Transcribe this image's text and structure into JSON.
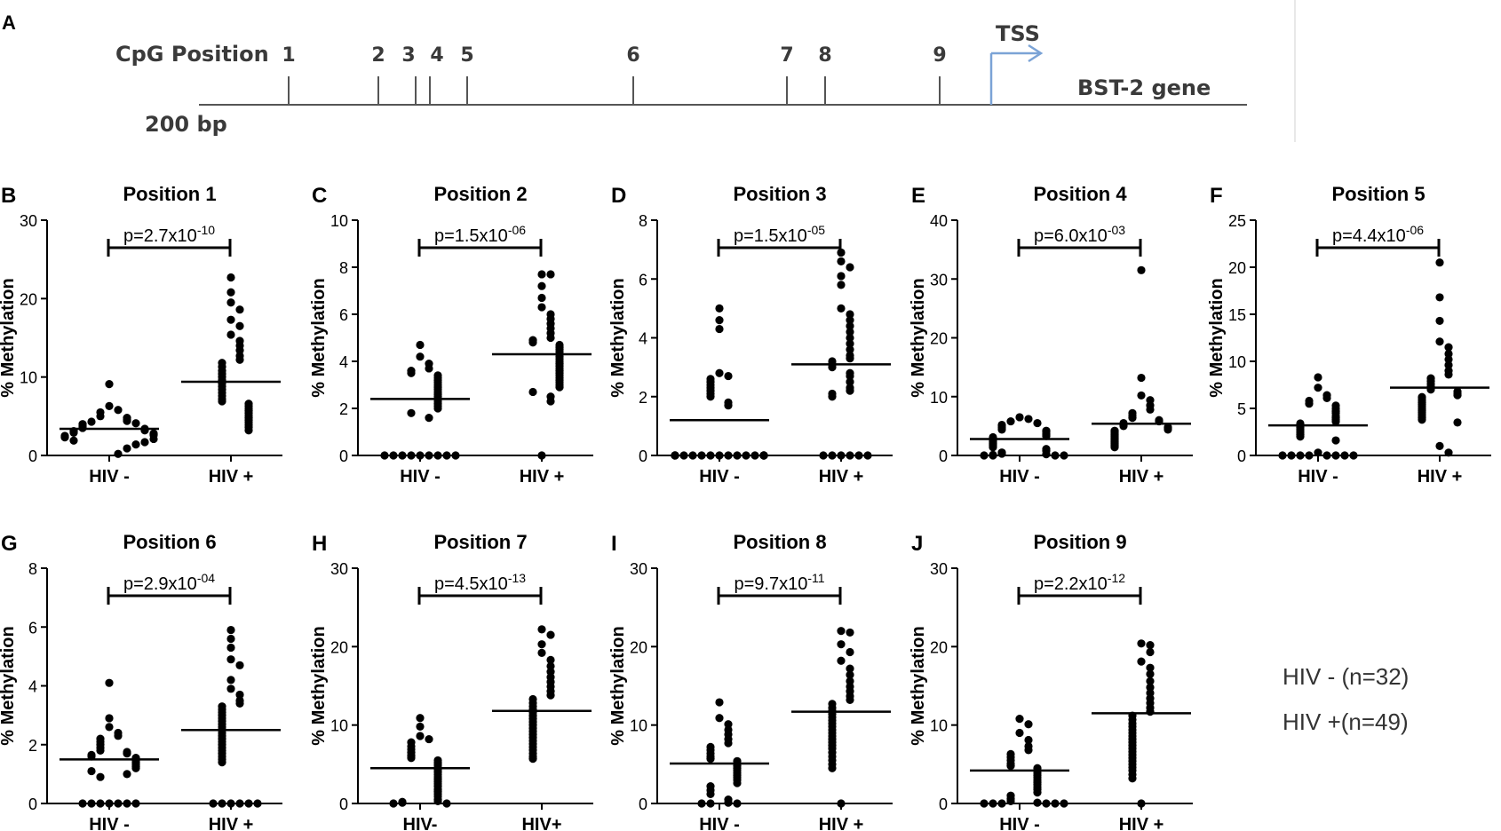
{
  "map": {
    "panel_letter": "A",
    "cpg_label": "CpG Position",
    "scale_label": "200 bp",
    "tss_label": "TSS",
    "gene_label": "BST-2 gene",
    "positions": [
      "1",
      "2",
      "3",
      "4",
      "5",
      "6",
      "7",
      "8",
      "9"
    ]
  },
  "legend": {
    "neg": "HIV - (n=32)",
    "pos": "HIV +(n=49)"
  },
  "colors": {
    "ink": "#000000",
    "map_line": "#555555",
    "tss_arrow": "#7ba3d6",
    "map_text": "#3a3a3a"
  },
  "chart_data": [
    {
      "letter": "B",
      "title": "Position 1",
      "type": "scatter",
      "ylabel": "% Methylation",
      "ylim": [
        0,
        30
      ],
      "yticks": [
        0,
        10,
        20,
        30
      ],
      "categories": [
        "HIV -",
        "HIV +"
      ],
      "p": "p=2.7x10",
      "exp": "-10",
      "means": [
        3.4,
        9.4
      ],
      "series": [
        {
          "name": "HIV -",
          "values": [
            9.1,
            6.3,
            5.8,
            5.5,
            5.0,
            4.8,
            4.6,
            4.4,
            4.3,
            4.1,
            4.0,
            3.8,
            3.7,
            3.5,
            3.4,
            3.3,
            3.2,
            3.1,
            3.0,
            2.9,
            2.8,
            2.7,
            2.6,
            2.5,
            2.4,
            2.3,
            2.1,
            1.9,
            1.7,
            1.4,
            0.9,
            0.2
          ]
        },
        {
          "name": "HIV +",
          "values": [
            22.7,
            20.8,
            19.5,
            18.6,
            17.3,
            16.5,
            15.4,
            14.6,
            14.0,
            13.4,
            12.7,
            12.2,
            11.8,
            11.3,
            10.8,
            10.4,
            10.0,
            9.6,
            9.2,
            8.8,
            8.4,
            8.0,
            7.6,
            7.2,
            6.9,
            6.6,
            6.3,
            6.0,
            5.7,
            5.4,
            5.1,
            4.8,
            4.5,
            4.2,
            3.9,
            3.6,
            3.2
          ]
        }
      ]
    },
    {
      "letter": "C",
      "title": "Position 2",
      "type": "scatter",
      "ylabel": "% Methylation",
      "ylim": [
        0,
        10
      ],
      "yticks": [
        0,
        2,
        4,
        6,
        8,
        10
      ],
      "categories": [
        "HIV -",
        "HIV +"
      ],
      "p": "p=1.5x10",
      "exp": "-06",
      "means": [
        2.4,
        4.3
      ],
      "series": [
        {
          "name": "HIV -",
          "values": [
            4.7,
            4.2,
            3.9,
            3.7,
            3.6,
            3.5,
            3.4,
            3.3,
            3.2,
            3.1,
            3.0,
            2.9,
            2.8,
            2.7,
            2.6,
            2.5,
            2.4,
            2.3,
            2.2,
            2.1,
            2.0,
            1.8,
            1.6,
            0,
            0,
            0,
            0,
            0,
            0,
            0,
            0,
            0
          ]
        },
        {
          "name": "HIV +",
          "values": [
            7.7,
            7.7,
            7.2,
            6.7,
            6.3,
            6.0,
            5.8,
            5.6,
            5.4,
            5.2,
            5.0,
            4.9,
            4.8,
            4.7,
            4.6,
            4.5,
            4.4,
            4.3,
            4.2,
            4.1,
            4.0,
            3.9,
            3.8,
            3.7,
            3.6,
            3.5,
            3.4,
            3.3,
            3.2,
            3.1,
            3.0,
            2.9,
            2.7,
            2.5,
            2.3,
            0
          ]
        }
      ]
    },
    {
      "letter": "D",
      "title": "Position 3",
      "type": "scatter",
      "ylabel": "% Methylation",
      "ylim": [
        0,
        8
      ],
      "yticks": [
        0,
        2,
        4,
        6,
        8
      ],
      "categories": [
        "HIV -",
        "HIV +"
      ],
      "p": "p=1.5x10",
      "exp": "-05",
      "means": [
        1.2,
        3.1
      ],
      "series": [
        {
          "name": "HIV -",
          "values": [
            5.0,
            4.6,
            4.3,
            2.8,
            2.7,
            2.6,
            2.5,
            2.4,
            2.3,
            2.2,
            2.1,
            2.0,
            1.8,
            1.7,
            0,
            0,
            0,
            0,
            0,
            0,
            0,
            0,
            0,
            0,
            0,
            0,
            0,
            0,
            0,
            0,
            0,
            0
          ]
        },
        {
          "name": "HIV +",
          "values": [
            6.9,
            6.6,
            6.4,
            6.1,
            5.8,
            5.0,
            4.8,
            4.6,
            4.4,
            4.2,
            4.0,
            3.8,
            3.6,
            3.4,
            3.3,
            3.2,
            3.1,
            3.0,
            2.8,
            2.7,
            2.5,
            2.3,
            2.2,
            2.1,
            2.0,
            0,
            0,
            0,
            0,
            0,
            0
          ]
        }
      ]
    },
    {
      "letter": "E",
      "title": "Position 4",
      "type": "scatter",
      "ylabel": "% Methylation",
      "ylim": [
        0,
        40
      ],
      "yticks": [
        0,
        10,
        20,
        30,
        40
      ],
      "categories": [
        "HIV -",
        "HIV +"
      ],
      "p": "p=6.0x10",
      "exp": "-03",
      "means": [
        2.8,
        5.4
      ],
      "series": [
        {
          "name": "HIV -",
          "values": [
            6.5,
            6.2,
            5.8,
            5.5,
            5.2,
            5.0,
            4.7,
            4.4,
            4.2,
            4.0,
            3.7,
            3.5,
            3.3,
            3.1,
            2.9,
            2.7,
            2.5,
            2.3,
            2.1,
            1.9,
            1.7,
            1.4,
            1.1,
            0.8,
            0.5,
            0.3,
            0.2,
            0.1,
            0,
            0,
            0,
            0
          ]
        },
        {
          "name": "HIV +",
          "values": [
            31.5,
            13.2,
            10.2,
            9.4,
            8.5,
            7.8,
            7.2,
            6.8,
            6.4,
            6.0,
            5.8,
            5.5,
            5.2,
            5.0,
            4.8,
            4.6,
            4.4,
            4.2,
            4.0,
            3.8,
            3.6,
            3.4,
            3.2,
            3.0,
            2.8,
            2.6,
            2.4,
            2.2,
            2.0,
            1.8,
            1.6,
            1.4
          ]
        }
      ]
    },
    {
      "letter": "F",
      "title": "Position 5",
      "type": "scatter",
      "ylabel": "% Methylation",
      "ylim": [
        0,
        25
      ],
      "yticks": [
        0,
        5,
        10,
        15,
        20,
        25
      ],
      "categories": [
        "HIV -",
        "HIV +"
      ],
      "p": "p=4.4x10",
      "exp": "-06",
      "means": [
        3.2,
        7.2
      ],
      "series": [
        {
          "name": "HIV -",
          "values": [
            8.3,
            7.2,
            6.4,
            6.1,
            5.8,
            5.5,
            5.3,
            5.0,
            4.7,
            4.5,
            4.2,
            4.0,
            3.8,
            3.6,
            3.4,
            3.2,
            3.0,
            2.8,
            2.6,
            2.4,
            2.2,
            2.0,
            1.6,
            0.3,
            0,
            0,
            0,
            0,
            0,
            0,
            0,
            0
          ]
        },
        {
          "name": "HIV +",
          "values": [
            20.5,
            16.8,
            14.3,
            12.1,
            11.5,
            10.8,
            10.2,
            9.6,
            9.0,
            8.6,
            8.2,
            7.9,
            7.6,
            7.3,
            7.0,
            6.8,
            6.6,
            6.4,
            6.2,
            6.0,
            5.8,
            5.6,
            5.4,
            5.2,
            5.0,
            4.8,
            4.6,
            4.4,
            4.2,
            4.0,
            3.8,
            3.5,
            1.0,
            0.3
          ]
        }
      ]
    },
    {
      "letter": "G",
      "title": "Position 6",
      "type": "scatter",
      "ylabel": "% Methylation",
      "ylim": [
        0,
        8
      ],
      "yticks": [
        0,
        2,
        4,
        6,
        8
      ],
      "categories": [
        "HIV -",
        "HIV +"
      ],
      "p": "p=2.9x10",
      "exp": "-04",
      "means": [
        1.5,
        2.5
      ],
      "series": [
        {
          "name": "HIV -",
          "values": [
            4.1,
            2.9,
            2.6,
            2.4,
            2.3,
            2.2,
            2.1,
            2.0,
            1.9,
            1.8,
            1.75,
            1.7,
            1.65,
            1.6,
            1.55,
            1.5,
            1.45,
            1.4,
            1.35,
            1.3,
            1.25,
            1.2,
            1.1,
            1.0,
            0.9,
            0,
            0,
            0,
            0,
            0,
            0,
            0
          ]
        },
        {
          "name": "HIV +",
          "values": [
            5.9,
            5.6,
            5.3,
            4.9,
            4.7,
            4.2,
            3.9,
            3.7,
            3.5,
            3.4,
            3.3,
            3.2,
            3.1,
            3.0,
            2.9,
            2.8,
            2.7,
            2.6,
            2.5,
            2.4,
            2.3,
            2.2,
            2.1,
            2.0,
            1.9,
            1.8,
            1.7,
            1.6,
            1.5,
            1.4,
            0,
            0,
            0,
            0,
            0,
            0
          ]
        }
      ]
    },
    {
      "letter": "H",
      "title": "Position 7",
      "type": "scatter",
      "ylabel": "% Methylation",
      "ylim": [
        0,
        30
      ],
      "yticks": [
        0,
        10,
        20,
        30
      ],
      "categories": [
        "HIV-",
        "HIV+"
      ],
      "p": "p=4.5x10",
      "exp": "-13",
      "means": [
        4.5,
        11.8
      ],
      "series": [
        {
          "name": "HIV-",
          "values": [
            10.9,
            9.8,
            8.6,
            8.2,
            7.8,
            7.3,
            6.9,
            6.5,
            6.1,
            5.8,
            5.5,
            5.2,
            4.9,
            4.6,
            4.3,
            4.0,
            3.7,
            3.4,
            3.1,
            2.8,
            2.5,
            2.2,
            1.8,
            1.5,
            1.2,
            0.9,
            0.5,
            0.3,
            0.2,
            0.1,
            0,
            0
          ]
        },
        {
          "name": "HIV+",
          "values": [
            22.2,
            21.5,
            20.3,
            19.2,
            18.3,
            17.5,
            16.8,
            16.1,
            15.5,
            14.9,
            14.3,
            13.8,
            13.3,
            12.8,
            12.4,
            12.0,
            11.6,
            11.2,
            10.8,
            10.4,
            10.0,
            9.6,
            9.2,
            8.8,
            8.4,
            8.0,
            7.6,
            7.2,
            6.8,
            6.4,
            6.0,
            5.7
          ]
        }
      ]
    },
    {
      "letter": "I",
      "title": "Position 8",
      "type": "scatter",
      "ylabel": "% Methylation",
      "ylim": [
        0,
        30
      ],
      "yticks": [
        0,
        10,
        20,
        30
      ],
      "categories": [
        "HIV -",
        "HIV +"
      ],
      "p": "p=9.7x10",
      "exp": "-11",
      "means": [
        5.1,
        11.7
      ],
      "series": [
        {
          "name": "HIV -",
          "values": [
            12.9,
            10.9,
            10.1,
            9.4,
            8.8,
            8.2,
            7.7,
            7.2,
            6.8,
            6.4,
            6.0,
            5.7,
            5.4,
            5.1,
            4.8,
            4.5,
            4.2,
            3.9,
            3.6,
            3.3,
            3.0,
            2.6,
            2.2,
            1.7,
            1.2,
            0.5,
            0.1,
            0,
            0,
            0
          ]
        },
        {
          "name": "HIV +",
          "values": [
            22.0,
            21.8,
            20.3,
            19.3,
            18.2,
            17.2,
            16.4,
            15.6,
            14.9,
            14.3,
            13.7,
            13.2,
            12.7,
            12.2,
            11.8,
            11.4,
            11.0,
            10.6,
            10.2,
            9.8,
            9.4,
            9.0,
            8.6,
            8.2,
            7.8,
            7.4,
            7.0,
            6.5,
            6.0,
            5.5,
            5.0,
            4.5,
            0
          ]
        }
      ]
    },
    {
      "letter": "J",
      "title": "Position 9",
      "type": "scatter",
      "ylabel": "% Methylation",
      "ylim": [
        0,
        30
      ],
      "yticks": [
        0,
        10,
        20,
        30
      ],
      "categories": [
        "HIV -",
        "HIV +"
      ],
      "p": "p=2.2x10",
      "exp": "-12",
      "means": [
        4.2,
        11.5
      ],
      "series": [
        {
          "name": "HIV -",
          "values": [
            10.8,
            10.1,
            9.0,
            8.1,
            7.3,
            6.8,
            6.3,
            5.9,
            5.5,
            5.1,
            4.8,
            4.5,
            4.2,
            3.9,
            3.6,
            3.3,
            3.0,
            2.7,
            2.4,
            2.1,
            1.8,
            1.4,
            1.0,
            0.6,
            0.3,
            0.1,
            0,
            0,
            0,
            0,
            0,
            0
          ]
        },
        {
          "name": "HIV +",
          "values": [
            20.4,
            20.2,
            19.3,
            18.1,
            17.3,
            16.5,
            15.6,
            14.8,
            14.1,
            13.4,
            12.8,
            12.2,
            11.7,
            11.2,
            10.7,
            10.2,
            9.8,
            9.4,
            9.0,
            8.6,
            8.2,
            7.8,
            7.4,
            7.0,
            6.6,
            6.2,
            5.8,
            5.4,
            5.0,
            4.6,
            4.2,
            3.7,
            3.2,
            0
          ]
        }
      ]
    }
  ]
}
